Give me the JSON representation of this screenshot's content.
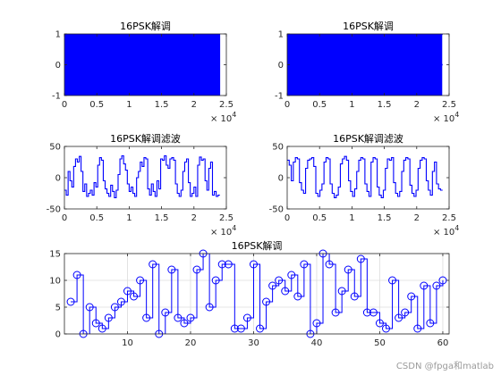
{
  "chart_data": [
    {
      "type": "line",
      "title": "16PSK解调",
      "xlim": [
        0,
        25000
      ],
      "ylim": [
        -1,
        1
      ],
      "xticks": [
        0,
        5000,
        10000,
        15000,
        20000,
        25000
      ],
      "xtick_labels": [
        "0",
        "0.5",
        "1",
        "1.5",
        "2",
        "2.5"
      ],
      "yticks": [
        -1,
        0,
        1
      ],
      "ytick_labels": [
        "-1",
        "0",
        "1"
      ],
      "x_exponent_base": "× 10",
      "x_exponent_power": "4",
      "grid": false,
      "series": [
        {
          "kind": "bipolar_stairs",
          "x_start": 0,
          "x_end": 24000,
          "levels": [
            1,
            -1,
            1,
            -1,
            -1,
            1,
            -1,
            1,
            1,
            -1,
            1,
            -1,
            -1,
            1,
            1,
            -1,
            1,
            -1,
            1,
            1,
            -1,
            -1,
            1,
            -1,
            1,
            -1,
            1,
            1,
            -1,
            1,
            -1,
            -1,
            1,
            -1,
            1,
            1,
            -1,
            1,
            -1,
            1,
            -1,
            -1,
            1,
            1,
            -1,
            1,
            -1,
            1,
            1,
            -1,
            -1,
            1,
            -1,
            1,
            -1,
            1,
            1,
            -1,
            1,
            -1,
            1,
            -1,
            -1,
            1,
            1,
            -1,
            1,
            -1,
            1,
            -1,
            1,
            -1,
            -1,
            1,
            1,
            -1,
            1,
            -1,
            1,
            1,
            -1,
            1,
            -1,
            -1,
            1,
            -1,
            1,
            1,
            -1,
            1,
            -1,
            1,
            -1,
            -1,
            1,
            1,
            -1,
            1,
            -1,
            1,
            -1,
            1,
            1,
            -1,
            1,
            -1,
            -1,
            1,
            -1,
            1,
            1,
            -1,
            1,
            -1,
            1,
            -1,
            -1,
            1,
            1,
            -1,
            1,
            -1,
            1,
            -1,
            1,
            1,
            -1,
            -1,
            1,
            -1,
            1,
            1,
            -1,
            1,
            -1,
            1,
            -1,
            1,
            -1,
            -1,
            1,
            1,
            -1,
            1,
            -1,
            1,
            1,
            -1,
            -1,
            1,
            -1,
            1,
            -1,
            1,
            -1,
            1,
            1,
            -1,
            1,
            -1,
            -1,
            1,
            1,
            -1,
            1,
            -1,
            1,
            -1,
            1,
            1,
            -1,
            1,
            -1,
            -1,
            1,
            -1,
            1,
            1,
            -1,
            1,
            -1,
            1,
            -1,
            -1,
            1,
            1,
            -1,
            1,
            -1,
            1,
            -1,
            1,
            1,
            -1,
            -1,
            1,
            -1,
            1,
            1,
            -1,
            1,
            -1,
            1,
            -1,
            -1,
            1,
            1,
            -1,
            1,
            -1,
            1,
            1,
            -1,
            1,
            -1,
            -1,
            1,
            -1,
            1,
            1,
            -1,
            1,
            -1,
            1,
            -1
          ]
        }
      ]
    },
    {
      "type": "line",
      "title": "16PSK解调",
      "xlim": [
        0,
        25000
      ],
      "ylim": [
        -1,
        1
      ],
      "xticks": [
        0,
        5000,
        10000,
        15000,
        20000,
        25000
      ],
      "xtick_labels": [
        "0",
        "0.5",
        "1",
        "1.5",
        "2",
        "2.5"
      ],
      "yticks": [
        -1,
        0,
        1
      ],
      "ytick_labels": [
        "-1",
        "0",
        "1"
      ],
      "x_exponent_base": "× 10",
      "x_exponent_power": "4",
      "grid": false,
      "series": [
        {
          "kind": "bipolar_stairs",
          "x_start": 0,
          "x_end": 24000,
          "levels": [
            -1,
            1,
            1,
            -1,
            1,
            -1,
            -1,
            1,
            -1,
            1,
            1,
            -1,
            1,
            -1,
            1,
            -1,
            -1,
            1,
            1,
            -1,
            1,
            -1,
            1,
            1,
            -1,
            -1,
            1,
            -1,
            1,
            -1,
            1,
            -1,
            1,
            1,
            -1,
            1,
            -1,
            -1,
            1,
            1,
            -1,
            1,
            -1,
            1,
            -1,
            1,
            1,
            -1,
            1,
            -1,
            -1,
            1,
            -1,
            1,
            1,
            -1,
            1,
            -1,
            1,
            -1,
            -1,
            1,
            1,
            -1,
            1,
            -1,
            1,
            -1,
            1,
            1,
            -1,
            -1,
            1,
            -1,
            1,
            1,
            -1,
            1,
            -1,
            1,
            -1,
            -1,
            1,
            1,
            -1,
            1,
            -1,
            1,
            1,
            -1,
            1,
            -1,
            -1,
            1,
            -1,
            1,
            1,
            -1,
            1,
            -1,
            1,
            -1,
            -1,
            1,
            1,
            -1,
            1,
            -1,
            1,
            -1,
            1,
            1,
            -1,
            1,
            -1,
            -1,
            1,
            -1,
            1,
            1,
            -1,
            1,
            -1,
            1,
            -1,
            -1,
            1,
            1,
            -1,
            1,
            -1,
            1,
            -1,
            1,
            1,
            -1,
            -1,
            1,
            -1,
            1,
            1,
            -1,
            1,
            -1,
            1,
            -1,
            1,
            -1,
            -1,
            1,
            1,
            -1,
            1,
            -1,
            1,
            1,
            -1,
            -1,
            1,
            -1,
            1,
            -1,
            1,
            -1,
            1,
            1,
            -1,
            1,
            -1,
            -1,
            1,
            1,
            -1,
            1,
            -1,
            1,
            -1,
            1,
            1,
            -1,
            1,
            -1,
            -1,
            1,
            -1,
            1,
            1,
            -1,
            1,
            -1,
            1,
            -1,
            -1,
            1,
            1,
            -1,
            1,
            -1,
            1,
            -1,
            1,
            1,
            -1,
            -1,
            1,
            -1,
            1,
            1,
            -1,
            1,
            -1,
            1,
            -1,
            -1,
            1,
            1,
            -1,
            1,
            -1,
            1,
            1
          ]
        }
      ]
    },
    {
      "type": "line",
      "title": "16PSK解调滤波",
      "xlim": [
        0,
        25000
      ],
      "ylim": [
        -50,
        50
      ],
      "xticks": [
        0,
        5000,
        10000,
        15000,
        20000,
        25000
      ],
      "xtick_labels": [
        "0",
        "0.5",
        "1",
        "1.5",
        "2",
        "2.5"
      ],
      "yticks": [
        -50,
        0,
        50
      ],
      "ytick_labels": [
        "-50",
        "0",
        "50"
      ],
      "x_exponent_base": "× 10",
      "x_exponent_power": "4",
      "grid": false,
      "series": [
        {
          "kind": "stairs",
          "x_start": 0,
          "x_end": 24000,
          "levels": [
            -20,
            -28,
            10,
            -5,
            -15,
            18,
            30,
            25,
            34,
            10,
            -22,
            -10,
            -30,
            -25,
            -20,
            -28,
            -8,
            -15,
            20,
            32,
            28,
            -5,
            -18,
            -25,
            -30,
            -12,
            -22,
            -32,
            -20,
            5,
            30,
            35,
            22,
            12,
            -10,
            -22,
            -15,
            -25,
            -30,
            0,
            10,
            25,
            18,
            32,
            30,
            -18,
            -28,
            -10,
            -22,
            -30,
            -5,
            -18,
            30,
            28,
            35,
            20,
            15,
            30,
            32,
            28,
            -10,
            -25,
            -30,
            -20,
            10,
            25,
            30,
            -8,
            -30,
            -25,
            -15,
            -30,
            20,
            33,
            28,
            30,
            -5,
            -20,
            15,
            25,
            -28,
            -22,
            -30,
            -28
          ]
        }
      ]
    },
    {
      "type": "line",
      "title": "16PSK解调滤波",
      "xlim": [
        0,
        25000
      ],
      "ylim": [
        -50,
        50
      ],
      "xticks": [
        0,
        5000,
        10000,
        15000,
        20000,
        25000
      ],
      "xtick_labels": [
        "0",
        "0.5",
        "1",
        "1.5",
        "2",
        "2.5"
      ],
      "yticks": [
        -50,
        0,
        50
      ],
      "ytick_labels": [
        "-50",
        "0",
        "50"
      ],
      "x_exponent_base": "× 10",
      "x_exponent_power": "4",
      "grid": false,
      "series": [
        {
          "kind": "stairs",
          "x_start": 0,
          "x_end": 24000,
          "levels": [
            28,
            20,
            -5,
            25,
            32,
            30,
            -8,
            -20,
            -25,
            15,
            28,
            30,
            32,
            18,
            -25,
            -30,
            -20,
            -10,
            25,
            32,
            30,
            -10,
            -25,
            -32,
            -28,
            -15,
            22,
            30,
            34,
            28,
            -5,
            -22,
            -30,
            -18,
            10,
            28,
            32,
            30,
            -10,
            -22,
            -30,
            25,
            32,
            30,
            -15,
            -28,
            -32,
            -20,
            15,
            30,
            28,
            32,
            -8,
            -25,
            -30,
            -22,
            10,
            28,
            32,
            30,
            -12,
            -25,
            -30,
            -20,
            15,
            28,
            32,
            30,
            -5,
            -20,
            -28,
            10,
            25,
            -10,
            -18,
            -20
          ]
        }
      ]
    },
    {
      "type": "scatter",
      "title": "16PSK解调",
      "xlim": [
        0,
        61
      ],
      "ylim": [
        0,
        15
      ],
      "xticks": [
        10,
        20,
        30,
        40,
        50,
        60
      ],
      "xtick_labels": [
        "10",
        "20",
        "30",
        "40",
        "50",
        "60"
      ],
      "yticks": [
        0,
        5,
        10,
        15
      ],
      "ytick_labels": [
        "0",
        "5",
        "10",
        "15"
      ],
      "grid": true,
      "series": [
        {
          "kind": "stem_stairs_markers",
          "x": [
            1,
            2,
            3,
            4,
            5,
            6,
            7,
            8,
            9,
            10,
            11,
            12,
            13,
            14,
            15,
            16,
            17,
            18,
            19,
            20,
            21,
            22,
            23,
            24,
            25,
            26,
            27,
            28,
            29,
            30,
            31,
            32,
            33,
            34,
            35,
            36,
            37,
            38,
            39,
            40,
            41,
            42,
            43,
            44,
            45,
            46,
            47,
            48,
            49,
            50,
            51,
            52,
            53,
            54,
            55,
            56,
            57,
            58,
            59,
            60
          ],
          "values": [
            6,
            11,
            0,
            5,
            2,
            1,
            3,
            5,
            6,
            8,
            7,
            10,
            3,
            13,
            0,
            4,
            12,
            3,
            2,
            3,
            12,
            15,
            5,
            10,
            13,
            13,
            1,
            1,
            3,
            13,
            1,
            6,
            9,
            10,
            8,
            11,
            7,
            13,
            0,
            2,
            15,
            13,
            4,
            8,
            12,
            7,
            14,
            4,
            4,
            2,
            1,
            10,
            3,
            4,
            7,
            1,
            9,
            2,
            9,
            10
          ]
        }
      ]
    }
  ],
  "watermark": "CSDN @fpga和matlab"
}
